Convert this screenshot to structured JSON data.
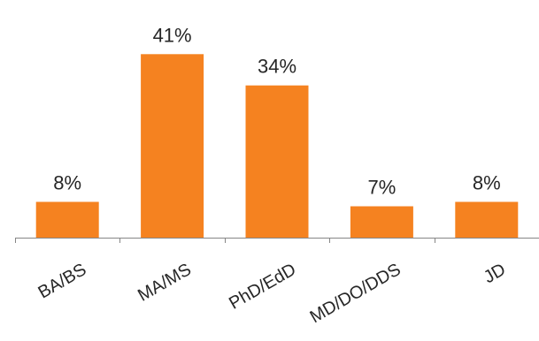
{
  "chart_data": {
    "type": "bar",
    "categories": [
      "BA/BS",
      "MA/MS",
      "PhD/EdD",
      "MD/DO/DDS",
      "JD"
    ],
    "values": [
      8,
      41,
      34,
      7,
      8
    ],
    "value_labels": [
      "8%",
      "41%",
      "34%",
      "7%",
      "8%"
    ],
    "ylim": [
      0,
      45
    ],
    "grid": false,
    "legend": "none",
    "colors": {
      "bar": "#F58220",
      "axis": "#868686",
      "text": "#262626"
    }
  }
}
